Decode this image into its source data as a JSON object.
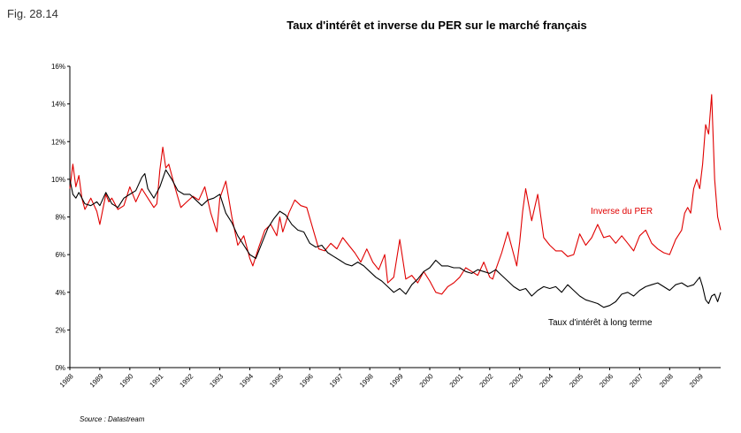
{
  "figure_label": "Fig. 28.14",
  "source": "Source : Datastream",
  "colors": {
    "per": "#e00000",
    "rate": "#000000",
    "axis": "#000000"
  },
  "chart_data": {
    "type": "line",
    "title": "Taux d'intérêt et inverse du PER sur le marché français",
    "xlabel": "",
    "ylabel": "",
    "ylim": [
      0,
      16
    ],
    "yticks": [
      0,
      2,
      4,
      6,
      8,
      10,
      12,
      14,
      16
    ],
    "ytick_labels": [
      "0%",
      "2%",
      "4%",
      "6%",
      "8%",
      "10%",
      "12%",
      "14%",
      "16%"
    ],
    "xlim": [
      1988,
      2009.7
    ],
    "xtick_labels": [
      "1988",
      "1989",
      "1990",
      "1991",
      "1992",
      "1993",
      "1994",
      "1995",
      "1996",
      "1997",
      "1998",
      "1999",
      "2000",
      "2001",
      "2002",
      "2003",
      "2004",
      "2005",
      "2006",
      "2007",
      "2008",
      "2009"
    ],
    "grid": false,
    "series": [
      {
        "name": "Inverse du PER",
        "color": "#e00000",
        "x": [
          1988.0,
          1988.1,
          1988.2,
          1988.3,
          1988.4,
          1988.5,
          1988.7,
          1988.9,
          1989.0,
          1989.2,
          1989.3,
          1989.4,
          1989.6,
          1989.8,
          1990.0,
          1990.2,
          1990.4,
          1990.6,
          1990.8,
          1990.9,
          1991.0,
          1991.1,
          1991.2,
          1991.3,
          1991.5,
          1991.7,
          1991.9,
          1992.1,
          1992.3,
          1992.5,
          1992.7,
          1992.9,
          1993.0,
          1993.2,
          1993.4,
          1993.6,
          1993.8,
          1994.0,
          1994.1,
          1994.3,
          1994.5,
          1994.7,
          1994.9,
          1995.0,
          1995.1,
          1995.3,
          1995.5,
          1995.7,
          1995.9,
          1996.1,
          1996.3,
          1996.5,
          1996.7,
          1996.9,
          1997.1,
          1997.3,
          1997.5,
          1997.7,
          1997.9,
          1998.1,
          1998.3,
          1998.5,
          1998.6,
          1998.8,
          1999.0,
          1999.2,
          1999.4,
          1999.6,
          1999.8,
          2000.0,
          2000.2,
          2000.4,
          2000.6,
          2000.8,
          2001.0,
          2001.2,
          2001.4,
          2001.6,
          2001.8,
          2002.0,
          2002.1,
          2002.2,
          2002.4,
          2002.6,
          2002.8,
          2002.9,
          2003.0,
          2003.1,
          2003.2,
          2003.4,
          2003.6,
          2003.8,
          2004.0,
          2004.2,
          2004.4,
          2004.6,
          2004.8,
          2005.0,
          2005.2,
          2005.4,
          2005.6,
          2005.8,
          2006.0,
          2006.2,
          2006.4,
          2006.6,
          2006.8,
          2007.0,
          2007.2,
          2007.4,
          2007.6,
          2007.8,
          2008.0,
          2008.2,
          2008.4,
          2008.5,
          2008.6,
          2008.7,
          2008.8,
          2008.9,
          2009.0,
          2009.1,
          2009.2,
          2009.3,
          2009.4,
          2009.5,
          2009.6,
          2009.7
        ],
        "y": [
          9.5,
          10.8,
          9.6,
          10.2,
          9.0,
          8.4,
          9.0,
          8.3,
          7.6,
          9.2,
          8.8,
          9.0,
          8.4,
          8.6,
          9.6,
          8.8,
          9.5,
          9.0,
          8.5,
          8.7,
          10.5,
          11.7,
          10.6,
          10.8,
          9.6,
          8.5,
          8.8,
          9.1,
          8.9,
          9.6,
          8.2,
          7.2,
          9.0,
          9.9,
          8.0,
          6.5,
          7.0,
          5.8,
          5.4,
          6.4,
          7.3,
          7.6,
          7.0,
          8.0,
          7.2,
          8.2,
          8.9,
          8.6,
          8.5,
          7.4,
          6.3,
          6.2,
          6.6,
          6.3,
          6.9,
          6.5,
          6.1,
          5.6,
          6.3,
          5.6,
          5.2,
          6.0,
          4.5,
          4.8,
          6.8,
          4.7,
          4.9,
          4.5,
          5.1,
          4.6,
          4.0,
          3.9,
          4.3,
          4.5,
          4.8,
          5.3,
          5.1,
          4.9,
          5.6,
          4.8,
          4.7,
          5.2,
          6.1,
          7.2,
          6.0,
          5.4,
          6.7,
          8.3,
          9.5,
          7.8,
          9.2,
          6.9,
          6.5,
          6.2,
          6.2,
          5.9,
          6.0,
          7.1,
          6.5,
          6.9,
          7.6,
          6.9,
          7.0,
          6.6,
          7.0,
          6.6,
          6.2,
          7.0,
          7.3,
          6.6,
          6.3,
          6.1,
          6.0,
          6.8,
          7.3,
          8.2,
          8.5,
          8.2,
          9.5,
          10.0,
          9.5,
          10.8,
          12.9,
          12.4,
          14.5,
          10.0,
          8.0,
          7.3
        ],
        "label_text": "Inverse du PER"
      },
      {
        "name": "Taux d'intérêt à long terme",
        "color": "#000000",
        "x": [
          1988.0,
          1988.1,
          1988.2,
          1988.3,
          1988.5,
          1988.7,
          1988.9,
          1989.0,
          1989.2,
          1989.4,
          1989.6,
          1989.8,
          1990.0,
          1990.2,
          1990.4,
          1990.5,
          1990.6,
          1990.8,
          1991.0,
          1991.2,
          1991.4,
          1991.6,
          1991.8,
          1992.0,
          1992.2,
          1992.4,
          1992.6,
          1992.8,
          1993.0,
          1993.2,
          1993.4,
          1993.6,
          1993.8,
          1994.0,
          1994.2,
          1994.4,
          1994.6,
          1994.8,
          1995.0,
          1995.2,
          1995.4,
          1995.6,
          1995.8,
          1996.0,
          1996.2,
          1996.4,
          1996.6,
          1996.8,
          1997.0,
          1997.2,
          1997.4,
          1997.6,
          1997.8,
          1998.0,
          1998.2,
          1998.4,
          1998.6,
          1998.8,
          1999.0,
          1999.2,
          1999.4,
          1999.6,
          1999.8,
          2000.0,
          2000.2,
          2000.4,
          2000.6,
          2000.8,
          2001.0,
          2001.2,
          2001.4,
          2001.6,
          2001.8,
          2002.0,
          2002.2,
          2002.4,
          2002.6,
          2002.8,
          2003.0,
          2003.2,
          2003.4,
          2003.6,
          2003.8,
          2004.0,
          2004.2,
          2004.4,
          2004.6,
          2004.8,
          2005.0,
          2005.2,
          2005.4,
          2005.6,
          2005.8,
          2006.0,
          2006.2,
          2006.4,
          2006.6,
          2006.8,
          2007.0,
          2007.2,
          2007.4,
          2007.6,
          2007.8,
          2008.0,
          2008.2,
          2008.4,
          2008.6,
          2008.8,
          2009.0,
          2009.1,
          2009.2,
          2009.3,
          2009.4,
          2009.5,
          2009.6,
          2009.7
        ],
        "y": [
          10.0,
          9.2,
          9.0,
          9.3,
          8.7,
          8.6,
          8.8,
          8.6,
          9.3,
          8.7,
          8.5,
          9.0,
          9.2,
          9.4,
          10.1,
          10.3,
          9.5,
          9.0,
          9.6,
          10.5,
          10.0,
          9.4,
          9.2,
          9.2,
          8.9,
          8.6,
          8.9,
          9.0,
          9.2,
          8.2,
          7.7,
          7.0,
          6.5,
          6.0,
          5.8,
          6.6,
          7.4,
          7.9,
          8.3,
          8.1,
          7.6,
          7.3,
          7.2,
          6.6,
          6.4,
          6.5,
          6.1,
          5.9,
          5.7,
          5.5,
          5.4,
          5.6,
          5.4,
          5.1,
          4.8,
          4.6,
          4.3,
          4.0,
          4.2,
          3.9,
          4.4,
          4.7,
          5.1,
          5.3,
          5.7,
          5.4,
          5.4,
          5.3,
          5.3,
          5.1,
          5.0,
          5.2,
          5.1,
          5.0,
          5.2,
          4.9,
          4.6,
          4.3,
          4.1,
          4.2,
          3.8,
          4.1,
          4.3,
          4.2,
          4.3,
          4.0,
          4.4,
          4.1,
          3.8,
          3.6,
          3.5,
          3.4,
          3.2,
          3.3,
          3.5,
          3.9,
          4.0,
          3.8,
          4.1,
          4.3,
          4.4,
          4.5,
          4.3,
          4.1,
          4.4,
          4.5,
          4.3,
          4.4,
          4.8,
          4.3,
          3.6,
          3.4,
          3.8,
          3.9,
          3.5,
          4.0
        ],
        "label_text": "Taux d'intérêt à long terme"
      }
    ]
  }
}
